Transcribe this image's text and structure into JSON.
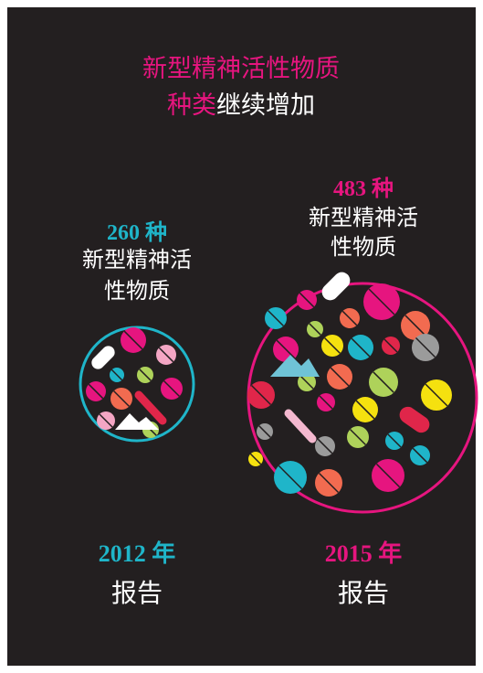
{
  "title": {
    "line1": "新型精神活性物质",
    "line2_highlight": "种类",
    "line2_rest": "继续增加"
  },
  "panels": [
    {
      "count": "260 种",
      "desc_lines": [
        "新型精神活",
        "性物质"
      ],
      "year": "2012 年",
      "label": "报告"
    },
    {
      "count": "483 种",
      "desc_lines": [
        "新型精神活",
        "性物质"
      ],
      "year": "2015 年",
      "label": "报告"
    }
  ]
}
